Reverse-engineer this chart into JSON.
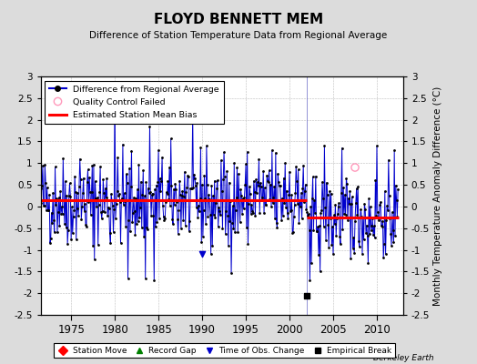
{
  "title": "FLOYD BENNETT MEM",
  "subtitle": "Difference of Station Temperature Data from Regional Average",
  "ylabel": "Monthly Temperature Anomaly Difference (°C)",
  "xlabel_years": [
    1975,
    1980,
    1985,
    1990,
    1995,
    2000,
    2005,
    2010
  ],
  "ylim": [
    -2.5,
    3.0
  ],
  "yticks": [
    -2.5,
    -2,
    -1.5,
    -1,
    -0.5,
    0,
    0.5,
    1,
    1.5,
    2,
    2.5,
    3
  ],
  "ytick_labels": [
    "-2.5",
    "-2",
    "-1.5",
    "-1",
    "-0.5",
    "0",
    "0.5",
    "1",
    "1.5",
    "2",
    "2.5",
    "3"
  ],
  "bias_segments": [
    {
      "x_start": 1971.0,
      "x_end": 2002.0,
      "bias": 0.15
    },
    {
      "x_start": 2002.0,
      "x_end": 2012.5,
      "bias": -0.25
    }
  ],
  "empirical_break_x": 2002.0,
  "empirical_break_y": -2.05,
  "obs_change_x": 1990.0,
  "obs_change_y": -1.1,
  "qc_fail_x": 2007.5,
  "qc_fail_y": 0.9,
  "vertical_line_x": 2002.0,
  "xlim": [
    1971.5,
    2013.0
  ],
  "line_color": "#0000CC",
  "bias_color": "#FF0000",
  "dot_color": "#000000",
  "qc_color": "#FF99BB",
  "background_color": "#DCDCDC",
  "plot_bg_color": "#FFFFFF",
  "grid_color": "#BBBBBB",
  "watermark": "Berkeley Earth",
  "seed": 42,
  "mean1": 0.15,
  "std1": 0.52,
  "mean2": -0.22,
  "std2": 0.42,
  "t1_start": 1971.5,
  "t1_end": 2002.0,
  "t2_start": 2002.0,
  "t2_end": 2012.5
}
